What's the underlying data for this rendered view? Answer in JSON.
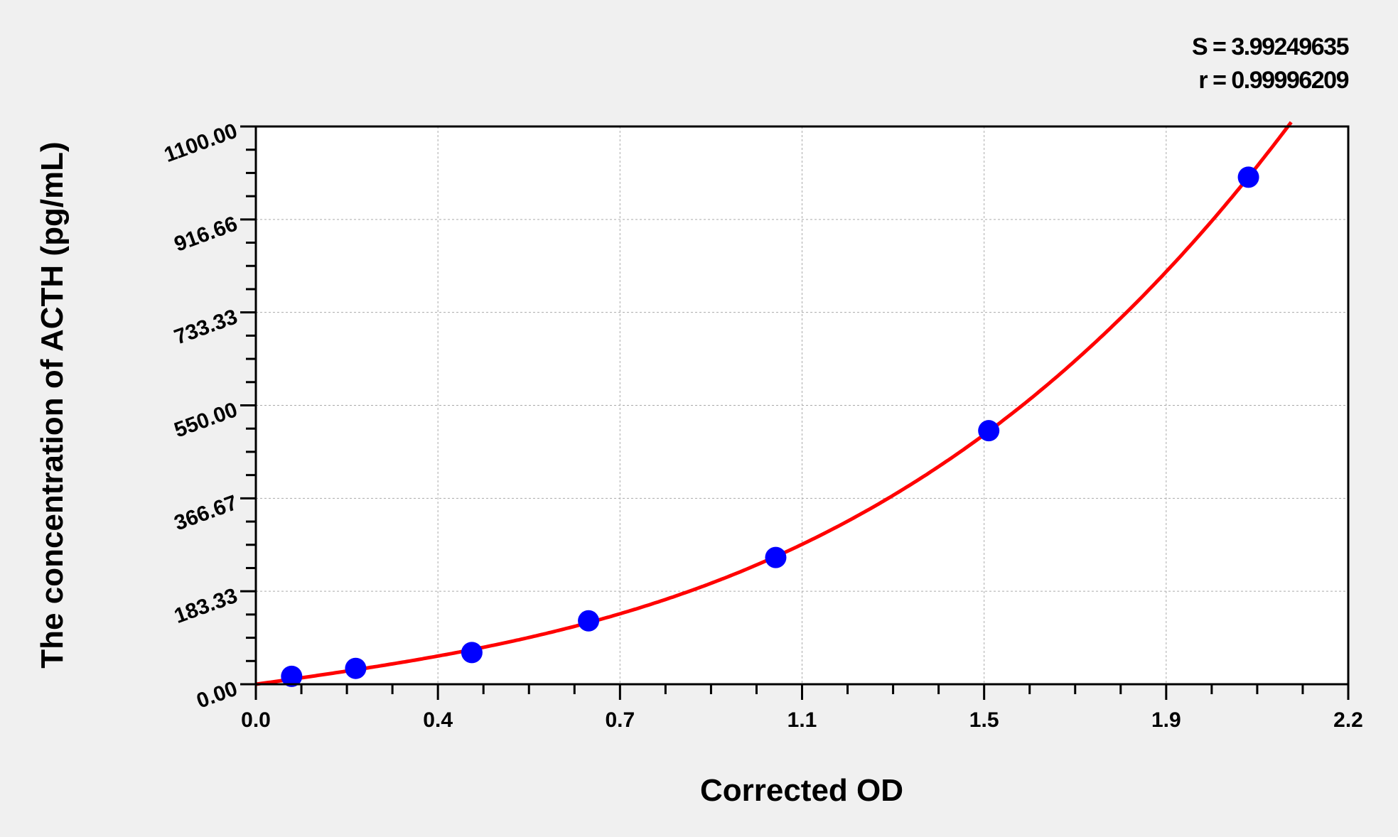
{
  "chart_data": {
    "type": "scatter",
    "xlabel": "Corrected OD",
    "ylabel": "The concentration of ACTH (pg/mL)",
    "xlim": [
      0,
      2.2
    ],
    "ylim": [
      0,
      1100
    ],
    "x_tick_labels": [
      "0.0",
      "0.4",
      "0.7",
      "1.1",
      "1.5",
      "1.9",
      "2.2"
    ],
    "y_tick_labels": [
      "0.00",
      "183.33",
      "366.67",
      "550.00",
      "733.33",
      "916.66",
      "1100.00"
    ],
    "grid": true,
    "annotations": [
      "S = 3.99249635",
      "r = 0.99996209"
    ],
    "points": {
      "x": [
        0.072,
        0.201,
        0.435,
        0.67,
        1.047,
        1.476,
        1.999
      ],
      "y": [
        15.6,
        31.25,
        62.5,
        125,
        250,
        500,
        1000
      ]
    },
    "colors": {
      "points": "#0000ff",
      "curve": "#ff0000",
      "background": "#f0f0f0",
      "plot_bg": "#ffffff"
    }
  }
}
